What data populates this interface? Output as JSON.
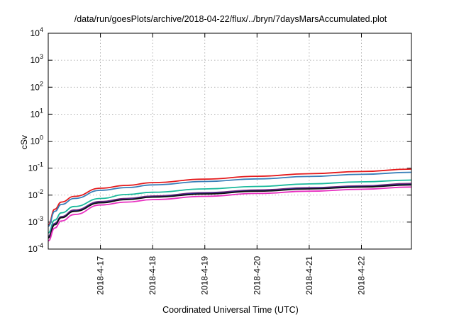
{
  "chart_data": {
    "type": "line",
    "title": "/data/run/goesPlots/archive/2018-04-22/flux/../bryn/7daysMarsAccumulated.plot",
    "xlabel": "Coordinated Universal Time (UTC)",
    "ylabel": "cSv",
    "y_scale": "log",
    "ylim": [
      0.0001,
      10000
    ],
    "xlim": [
      "2018-04-16",
      "2018-04-22 23:00"
    ],
    "grid": true,
    "y_ticks": [
      {
        "value": 0.0001,
        "base": "10",
        "exp": "-4"
      },
      {
        "value": 0.001,
        "base": "10",
        "exp": "-3"
      },
      {
        "value": 0.01,
        "base": "10",
        "exp": "-2"
      },
      {
        "value": 0.1,
        "base": "10",
        "exp": "-1"
      },
      {
        "value": 1,
        "base": "10",
        "exp": "0"
      },
      {
        "value": 10,
        "base": "10",
        "exp": "1"
      },
      {
        "value": 100,
        "base": "10",
        "exp": "2"
      },
      {
        "value": 1000,
        "base": "10",
        "exp": "3"
      },
      {
        "value": 10000,
        "base": "10",
        "exp": "4"
      }
    ],
    "x_ticks": [
      {
        "value": "2018-04-17",
        "label": "2018-4-17"
      },
      {
        "value": "2018-04-18",
        "label": "2018-4-18"
      },
      {
        "value": "2018-04-19",
        "label": "2018-4-19"
      },
      {
        "value": "2018-04-20",
        "label": "2018-4-20"
      },
      {
        "value": "2018-04-21",
        "label": "2018-4-21"
      },
      {
        "value": "2018-04-22",
        "label": "2018-4-22"
      }
    ],
    "x": [
      "2018-04-16 00:00",
      "2018-04-16 03:00",
      "2018-04-16 06:00",
      "2018-04-16 12:00",
      "2018-04-17 00:00",
      "2018-04-17 12:00",
      "2018-04-18 00:00",
      "2018-04-19 00:00",
      "2018-04-20 00:00",
      "2018-04-21 00:00",
      "2018-04-22 00:00",
      "2018-04-22 23:00"
    ],
    "series": [
      {
        "color": "#e41a1c",
        "values": [
          0.0008,
          0.003,
          0.0055,
          0.009,
          0.018,
          0.023,
          0.029,
          0.039,
          0.05,
          0.062,
          0.075,
          0.092
        ]
      },
      {
        "color": "#377eb8",
        "values": [
          0.0007,
          0.0025,
          0.0045,
          0.0075,
          0.015,
          0.019,
          0.024,
          0.032,
          0.04,
          0.049,
          0.059,
          0.07
        ]
      },
      {
        "color": "#1ab99c",
        "values": [
          0.0004,
          0.0012,
          0.0022,
          0.0038,
          0.0075,
          0.0105,
          0.0128,
          0.017,
          0.021,
          0.026,
          0.031,
          0.036
        ]
      },
      {
        "color": "#7b2a7b",
        "values": [
          0.0003,
          0.0009,
          0.0016,
          0.0028,
          0.0058,
          0.0075,
          0.0093,
          0.0123,
          0.0155,
          0.0188,
          0.022,
          0.027
        ]
      },
      {
        "color": "#1f2fa0",
        "values": [
          0.00028,
          0.00085,
          0.0015,
          0.0026,
          0.0054,
          0.007,
          0.0087,
          0.0115,
          0.0145,
          0.0176,
          0.0208,
          0.025
        ]
      },
      {
        "color": "#111111",
        "values": [
          0.00026,
          0.0008,
          0.00145,
          0.0025,
          0.0052,
          0.0068,
          0.0084,
          0.011,
          0.014,
          0.017,
          0.02,
          0.024
        ]
      },
      {
        "color": "#e82fc0",
        "values": [
          0.0002,
          0.0006,
          0.0011,
          0.0019,
          0.0043,
          0.0055,
          0.0068,
          0.009,
          0.0115,
          0.014,
          0.0165,
          0.02
        ]
      }
    ]
  }
}
